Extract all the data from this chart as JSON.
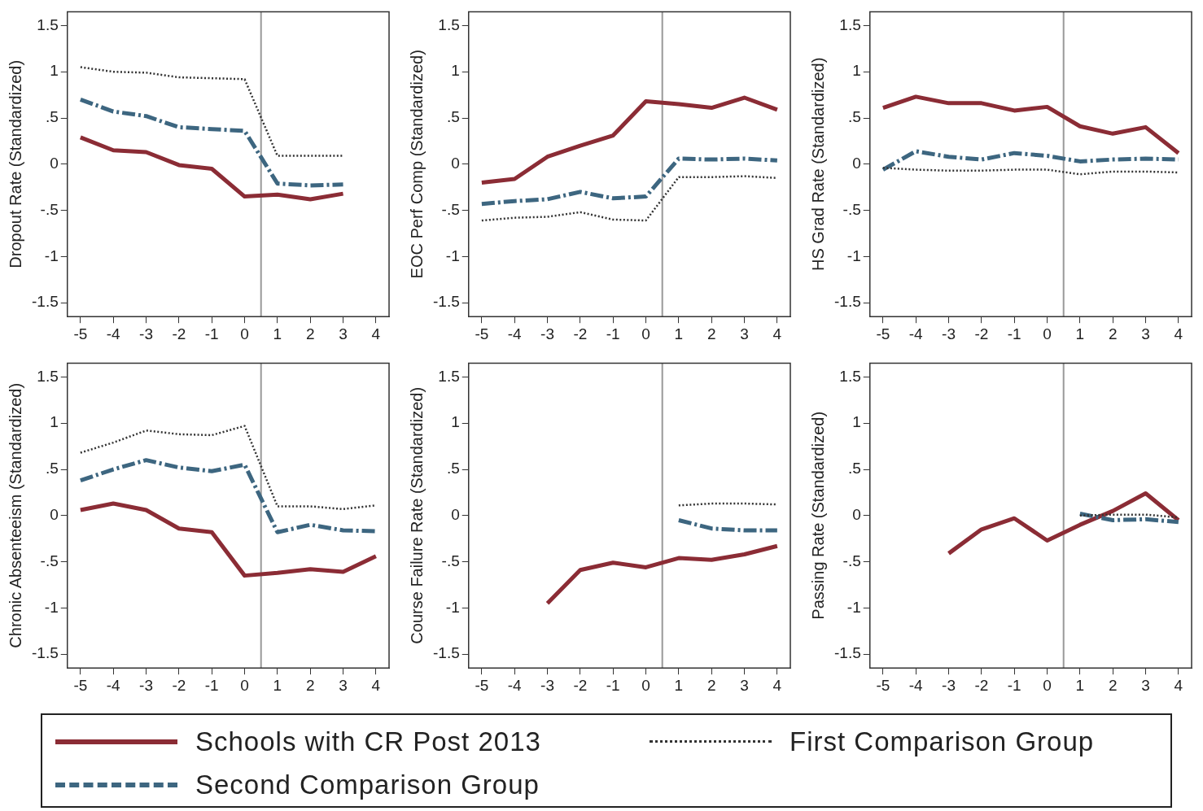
{
  "chart_data": [
    {
      "type": "line",
      "ylabel": "Dropout Rate (Standardized)",
      "xlim": [
        -5.4,
        4.4
      ],
      "xticks": [
        -5,
        -4,
        -3,
        -2,
        -1,
        0,
        1,
        2,
        3,
        4
      ],
      "ylim": [
        -1.65,
        1.65
      ],
      "yticks": [
        {
          "value": -1.5,
          "label": "-1.5"
        },
        {
          "value": -1,
          "label": "-1"
        },
        {
          "value": -0.5,
          "label": "-.5"
        },
        {
          "value": 0,
          "label": "0"
        },
        {
          "value": 0.5,
          "label": ".5"
        },
        {
          "value": 1,
          "label": "1"
        },
        {
          "value": 1.5,
          "label": "1.5"
        }
      ],
      "legend": "bottom",
      "ref_lines": [
        {
          "axis": "x",
          "value": 0.5,
          "color": "#999999"
        }
      ],
      "series": [
        {
          "name": "Schools with CR Post 2013",
          "color": "#8b2c35",
          "line_style": "solid",
          "x": [
            -5,
            -4,
            -3,
            -2,
            -1,
            0,
            1,
            2,
            3
          ],
          "values": [
            0.29,
            0.15,
            0.13,
            -0.01,
            -0.05,
            -0.35,
            -0.33,
            -0.38,
            -0.32
          ]
        },
        {
          "name": "Second Comparison Group",
          "color": "#3d6680",
          "line_style": "dashed",
          "x": [
            -5,
            -4,
            -3,
            -2,
            -1,
            0,
            1,
            2,
            3
          ],
          "values": [
            0.7,
            0.57,
            0.52,
            0.4,
            0.38,
            0.36,
            -0.21,
            -0.23,
            -0.22
          ]
        },
        {
          "name": "First Comparison Group",
          "color": "#333333",
          "line_style": "dotted",
          "x": [
            -5,
            -4,
            -3,
            -2,
            -1,
            0,
            1,
            2,
            3
          ],
          "values": [
            1.05,
            1.0,
            0.99,
            0.94,
            0.93,
            0.92,
            0.09,
            0.09,
            0.09
          ]
        }
      ]
    },
    {
      "type": "line",
      "ylabel": "EOC Perf Comp (Standardized)",
      "xlim": [
        -5.4,
        4.4
      ],
      "xticks": [
        -5,
        -4,
        -3,
        -2,
        -1,
        0,
        1,
        2,
        3,
        4
      ],
      "ylim": [
        -1.65,
        1.65
      ],
      "yticks": [
        {
          "value": -1.5,
          "label": "-1.5"
        },
        {
          "value": -1,
          "label": "-1"
        },
        {
          "value": -0.5,
          "label": "-.5"
        },
        {
          "value": 0,
          "label": "0"
        },
        {
          "value": 0.5,
          "label": ".5"
        },
        {
          "value": 1,
          "label": "1"
        },
        {
          "value": 1.5,
          "label": "1.5"
        }
      ],
      "ref_lines": [
        {
          "axis": "x",
          "value": 0.5,
          "color": "#999999"
        }
      ],
      "series": [
        {
          "color": "#8b2c35",
          "line_style": "solid",
          "x": [
            -5,
            -4,
            -3,
            -2,
            -1,
            0,
            1,
            2,
            3,
            4
          ],
          "values": [
            -0.2,
            -0.16,
            0.08,
            0.2,
            0.31,
            0.68,
            0.65,
            0.61,
            0.72,
            0.59
          ]
        },
        {
          "color": "#3d6680",
          "line_style": "dashed",
          "x": [
            -5,
            -4,
            -3,
            -2,
            -1,
            0,
            1,
            2,
            3,
            4
          ],
          "values": [
            -0.43,
            -0.4,
            -0.38,
            -0.3,
            -0.37,
            -0.35,
            0.06,
            0.05,
            0.06,
            0.04
          ]
        },
        {
          "color": "#333333",
          "line_style": "dotted",
          "x": [
            -5,
            -4,
            -3,
            -2,
            -1,
            0,
            1,
            2,
            3,
            4
          ],
          "values": [
            -0.61,
            -0.58,
            -0.57,
            -0.52,
            -0.6,
            -0.61,
            -0.14,
            -0.14,
            -0.13,
            -0.15
          ]
        }
      ]
    },
    {
      "type": "line",
      "ylabel": "HS Grad Rate (Standardized)",
      "xlim": [
        -5.4,
        4.4
      ],
      "xticks": [
        -5,
        -4,
        -3,
        -2,
        -1,
        0,
        1,
        2,
        3,
        4
      ],
      "ylim": [
        -1.65,
        1.65
      ],
      "yticks": [
        {
          "value": -1.5,
          "label": "-1.5"
        },
        {
          "value": -1,
          "label": "-1"
        },
        {
          "value": -0.5,
          "label": "-.5"
        },
        {
          "value": 0,
          "label": "0"
        },
        {
          "value": 0.5,
          "label": ".5"
        },
        {
          "value": 1,
          "label": "1"
        },
        {
          "value": 1.5,
          "label": "1.5"
        }
      ],
      "ref_lines": [
        {
          "axis": "x",
          "value": 0.5,
          "color": "#999999"
        }
      ],
      "series": [
        {
          "color": "#8b2c35",
          "line_style": "solid",
          "x": [
            -5,
            -4,
            -3,
            -2,
            -1,
            0,
            1,
            2,
            3,
            4
          ],
          "values": [
            0.61,
            0.73,
            0.66,
            0.66,
            0.58,
            0.62,
            0.41,
            0.33,
            0.4,
            0.12
          ]
        },
        {
          "color": "#3d6680",
          "line_style": "dashed",
          "x": [
            -5,
            -4,
            -3,
            -2,
            -1,
            0,
            1,
            2,
            3,
            4
          ],
          "values": [
            -0.06,
            0.14,
            0.08,
            0.05,
            0.12,
            0.09,
            0.03,
            0.05,
            0.06,
            0.05
          ]
        },
        {
          "color": "#333333",
          "line_style": "dotted",
          "x": [
            -5,
            -4,
            -3,
            -2,
            -1,
            0,
            1,
            2,
            3,
            4
          ],
          "values": [
            -0.04,
            -0.06,
            -0.07,
            -0.07,
            -0.06,
            -0.06,
            -0.11,
            -0.08,
            -0.08,
            -0.09
          ]
        }
      ]
    },
    {
      "type": "line",
      "ylabel": "Chronic Absenteeism (Standardized)",
      "xlim": [
        -5.4,
        4.4
      ],
      "xticks": [
        -5,
        -4,
        -3,
        -2,
        -1,
        0,
        1,
        2,
        3,
        4
      ],
      "ylim": [
        -1.65,
        1.65
      ],
      "yticks": [
        {
          "value": -1.5,
          "label": "-1.5"
        },
        {
          "value": -1,
          "label": "-1"
        },
        {
          "value": -0.5,
          "label": "-.5"
        },
        {
          "value": 0,
          "label": "0"
        },
        {
          "value": 0.5,
          "label": ".5"
        },
        {
          "value": 1,
          "label": "1"
        },
        {
          "value": 1.5,
          "label": "1.5"
        }
      ],
      "ref_lines": [
        {
          "axis": "x",
          "value": 0.5,
          "color": "#999999"
        }
      ],
      "series": [
        {
          "color": "#8b2c35",
          "line_style": "solid",
          "x": [
            -5,
            -4,
            -3,
            -2,
            -1,
            0,
            1,
            2,
            3,
            4
          ],
          "values": [
            0.06,
            0.13,
            0.06,
            -0.14,
            -0.18,
            -0.65,
            -0.62,
            -0.58,
            -0.61,
            -0.44
          ]
        },
        {
          "color": "#3d6680",
          "line_style": "dashed",
          "x": [
            -5,
            -4,
            -3,
            -2,
            -1,
            0,
            1,
            2,
            3,
            4
          ],
          "values": [
            0.38,
            0.5,
            0.6,
            0.52,
            0.48,
            0.55,
            -0.18,
            -0.1,
            -0.16,
            -0.17
          ]
        },
        {
          "color": "#333333",
          "line_style": "dotted",
          "x": [
            -5,
            -4,
            -3,
            -2,
            -1,
            0,
            1,
            2,
            3,
            4
          ],
          "values": [
            0.68,
            0.79,
            0.92,
            0.88,
            0.87,
            0.97,
            0.1,
            0.1,
            0.07,
            0.11
          ]
        }
      ]
    },
    {
      "type": "line",
      "ylabel": "Course Failure Rate (Standardized)",
      "xlim": [
        -5.4,
        4.4
      ],
      "xticks": [
        -5,
        -4,
        -3,
        -2,
        -1,
        0,
        1,
        2,
        3,
        4
      ],
      "ylim": [
        -1.65,
        1.65
      ],
      "yticks": [
        {
          "value": -1.5,
          "label": "-1.5"
        },
        {
          "value": -1,
          "label": "-1"
        },
        {
          "value": -0.5,
          "label": "-.5"
        },
        {
          "value": 0,
          "label": "0"
        },
        {
          "value": 0.5,
          "label": ".5"
        },
        {
          "value": 1,
          "label": "1"
        },
        {
          "value": 1.5,
          "label": "1.5"
        }
      ],
      "ref_lines": [
        {
          "axis": "x",
          "value": 0.5,
          "color": "#999999"
        }
      ],
      "series": [
        {
          "color": "#8b2c35",
          "line_style": "solid",
          "x": [
            -3,
            -2,
            -1,
            0,
            1,
            2,
            3,
            4
          ],
          "values": [
            -0.95,
            -0.59,
            -0.51,
            -0.56,
            -0.46,
            -0.48,
            -0.42,
            -0.33
          ]
        },
        {
          "color": "#3d6680",
          "line_style": "dashed",
          "x": [
            1,
            2,
            3,
            4
          ],
          "values": [
            -0.05,
            -0.14,
            -0.16,
            -0.16
          ]
        },
        {
          "color": "#333333",
          "line_style": "dotted",
          "x": [
            1,
            2,
            3,
            4
          ],
          "values": [
            0.11,
            0.13,
            0.13,
            0.12
          ]
        }
      ]
    },
    {
      "type": "line",
      "ylabel": "Passing Rate (Standardized)",
      "xlim": [
        -5.4,
        4.4
      ],
      "xticks": [
        -5,
        -4,
        -3,
        -2,
        -1,
        0,
        1,
        2,
        3,
        4
      ],
      "ylim": [
        -1.65,
        1.65
      ],
      "yticks": [
        {
          "value": -1.5,
          "label": "-1.5"
        },
        {
          "value": -1,
          "label": "-1"
        },
        {
          "value": -0.5,
          "label": "-.5"
        },
        {
          "value": 0,
          "label": "0"
        },
        {
          "value": 0.5,
          "label": ".5"
        },
        {
          "value": 1,
          "label": "1"
        },
        {
          "value": 1.5,
          "label": "1.5"
        }
      ],
      "ref_lines": [
        {
          "axis": "x",
          "value": 0.5,
          "color": "#999999"
        }
      ],
      "series": [
        {
          "color": "#8b2c35",
          "line_style": "solid",
          "x": [
            -3,
            -2,
            -1,
            0,
            1,
            2,
            3,
            4
          ],
          "values": [
            -0.41,
            -0.15,
            -0.03,
            -0.27,
            -0.1,
            0.05,
            0.24,
            -0.05
          ]
        },
        {
          "color": "#3d6680",
          "line_style": "dashed",
          "x": [
            1,
            2,
            3,
            4
          ],
          "values": [
            0.02,
            -0.05,
            -0.04,
            -0.07
          ]
        },
        {
          "color": "#333333",
          "line_style": "dotted",
          "x": [
            1,
            2,
            3,
            4
          ],
          "values": [
            0.0,
            0.01,
            0.01,
            -0.02
          ]
        }
      ]
    }
  ]
}
